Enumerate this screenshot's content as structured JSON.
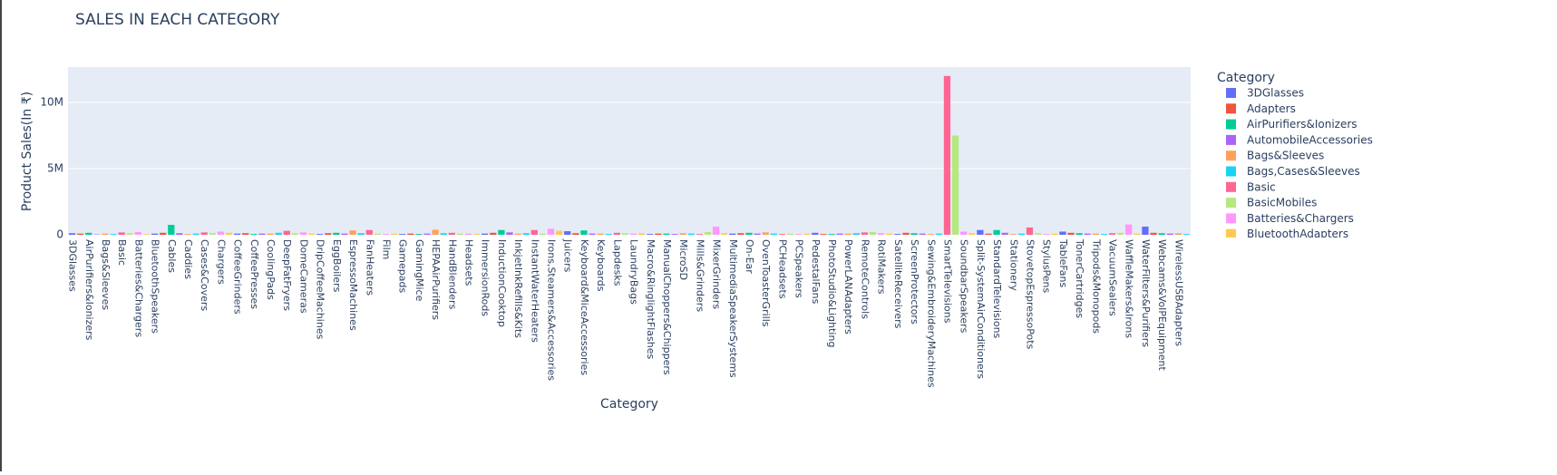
{
  "chart_data": {
    "type": "bar",
    "title": "SALES IN EACH CATEGORY",
    "x_label": "Category",
    "y_label": "Product Sales(In ₹)",
    "legend_title": "Category",
    "categories": [
      "3DGlasses",
      "Adapters",
      "AirPurifiers&Ionizers",
      "AutomobileAccessories",
      "Bags&Sleeves",
      "Bags,Cases&Sleeves",
      "Basic",
      "BasicMobiles",
      "Batteries&Chargers",
      "BluetoothAdapters",
      "BluetoothSpeakers",
      null,
      "Cables",
      null,
      "Caddies",
      null,
      "Cases&Covers",
      null,
      "Chargers",
      null,
      "CoffeeGrinders",
      null,
      "CoffeePresses",
      null,
      "CoolingPads",
      null,
      "DeepFatFryers",
      null,
      "DomeCameras",
      null,
      "DripCoffeeMachines",
      null,
      "EggBoilers",
      null,
      "EspressoMachines",
      null,
      "FanHeaters",
      null,
      "Film",
      null,
      "Gamepads",
      null,
      "GamingMice",
      null,
      "HEPAAirPurifiers",
      null,
      "HandBlenders",
      null,
      "Headsets",
      null,
      "ImmersionRods",
      null,
      "InductionCooktop",
      null,
      "InkjetInkRefills&Kits",
      null,
      "InstantWaterHeaters",
      null,
      "Irons,Steamers&Accessories",
      null,
      "Juicers",
      null,
      "Keyboard&MiceAccessories",
      null,
      "Keyboards",
      null,
      "Lapdesks",
      null,
      "LaundryBags",
      null,
      "Macro&RinglightFlashes",
      null,
      "ManualChoppers&Chippers",
      null,
      "MicroSD",
      null,
      "Mills&Grinders",
      null,
      "MixerGrinders",
      null,
      "MultimediaSpeakerSystems",
      null,
      "On-Ear",
      null,
      "OvenToasterGrills",
      null,
      "PCHeadsets",
      null,
      "PCSpeakers",
      null,
      "PedestalFans",
      null,
      "PhotoStudio&Lighting",
      null,
      "PowerLANAdapters",
      null,
      "RemoteControls",
      null,
      "RotiMakers",
      null,
      "SatelliteReceivers",
      null,
      "ScreenProtectors",
      null,
      "Sewing&EmbroideryMachines",
      null,
      "SmartTelevisions",
      null,
      "SoundbarSpeakers",
      null,
      "Split-SystemAirConditioners",
      null,
      "StandardTelevisions",
      null,
      "Stationery",
      null,
      "StovetopEspressoPots",
      null,
      "StylusPens",
      null,
      "TableFans",
      null,
      "TonerCartridges",
      null,
      "Tripods&Monopods",
      null,
      "VacuumSealers",
      null,
      "WaffleMakers&Irons",
      null,
      "WaterFilters&Purifiers",
      null,
      "Webcams&VoIPEquipment",
      null,
      "WirelessUSBAdapters",
      null
    ],
    "values": [
      120000,
      90000,
      150000,
      30000,
      90000,
      60000,
      180000,
      120000,
      210000,
      50000,
      90000,
      150000,
      750000,
      120000,
      60000,
      90000,
      180000,
      120000,
      240000,
      150000,
      90000,
      120000,
      60000,
      90000,
      90000,
      150000,
      300000,
      120000,
      180000,
      90000,
      60000,
      120000,
      150000,
      90000,
      330000,
      120000,
      360000,
      90000,
      60000,
      90000,
      60000,
      90000,
      60000,
      90000,
      380000,
      120000,
      150000,
      90000,
      90000,
      60000,
      90000,
      150000,
      360000,
      180000,
      90000,
      120000,
      360000,
      90000,
      450000,
      300000,
      270000,
      120000,
      330000,
      90000,
      90000,
      60000,
      150000,
      120000,
      90000,
      120000,
      60000,
      90000,
      90000,
      60000,
      120000,
      90000,
      60000,
      210000,
      620000,
      120000,
      90000,
      120000,
      150000,
      90000,
      180000,
      90000,
      60000,
      90000,
      60000,
      90000,
      150000,
      60000,
      60000,
      90000,
      90000,
      120000,
      180000,
      210000,
      120000,
      90000,
      60000,
      150000,
      120000,
      90000,
      60000,
      90000,
      12000000,
      7500000,
      240000,
      120000,
      360000,
      90000,
      360000,
      150000,
      60000,
      90000,
      550000,
      120000,
      60000,
      90000,
      240000,
      150000,
      120000,
      90000,
      90000,
      60000,
      120000,
      150000,
      780000,
      90000,
      620000,
      150000,
      120000,
      90000,
      120000,
      60000
    ],
    "palette": [
      "#636efa",
      "#EF553B",
      "#00cc96",
      "#ab63fa",
      "#FFA15A",
      "#19d3f3",
      "#FF6692",
      "#B6E880",
      "#FF97FF",
      "#FECB52"
    ],
    "xtick_step": 2,
    "ylim": [
      0,
      12670000
    ],
    "yticks": [
      0,
      {
        "value": 5000000,
        "label": "5M"
      },
      {
        "value": 10000000,
        "label": "10M"
      }
    ],
    "grid": true
  }
}
